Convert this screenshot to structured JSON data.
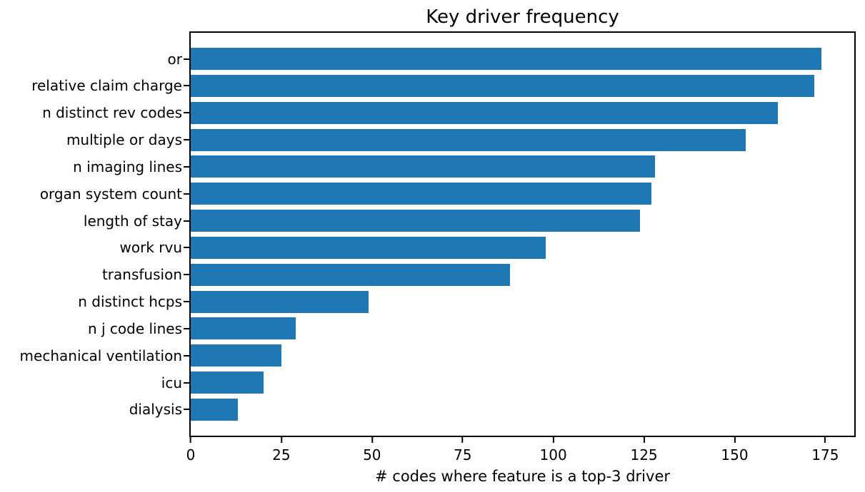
{
  "chart_data": {
    "type": "bar",
    "orientation": "horizontal",
    "title": "Key driver frequency",
    "xlabel": "# codes where feature is a top-3 driver",
    "categories": [
      "or",
      "relative claim charge",
      "n distinct rev codes",
      "multiple or days",
      "n imaging lines",
      "organ system count",
      "length of stay",
      "work rvu",
      "transfusion",
      "n distinct hcps",
      "n j code lines",
      "mechanical ventilation",
      "icu",
      "dialysis"
    ],
    "values": [
      174,
      172,
      162,
      153,
      128,
      127,
      124,
      98,
      88,
      49,
      29,
      25,
      20,
      13
    ],
    "x_ticks": [
      0,
      25,
      50,
      75,
      100,
      125,
      150,
      175
    ],
    "xlim": [
      0,
      183
    ],
    "bar_color": "#1f77b4",
    "grid": false,
    "legend_position": "none"
  }
}
